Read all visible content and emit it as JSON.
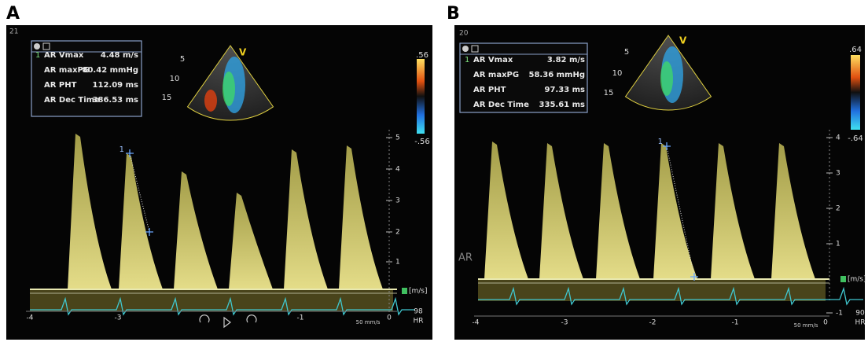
{
  "panels": [
    {
      "label": "A",
      "frame": "21",
      "measurements": [
        {
          "index": "1",
          "name": "AR Vmax",
          "value": "4.48 m/s"
        },
        {
          "name": "AR maxPG",
          "value": "80.42 mmHg"
        },
        {
          "name": "AR PHT",
          "value": "112.09 ms"
        },
        {
          "name": "AR Dec Time",
          "value": "386.53 ms"
        }
      ],
      "color_scale": [
        ".56",
        "-.56"
      ],
      "sector_depths": [
        "5",
        "10",
        "15"
      ],
      "sector_mark": "V",
      "velocity_scale": [
        "5",
        "4",
        "3",
        "2",
        "1"
      ],
      "velocity_unit": "[m/s]",
      "time_labels": [
        "-4",
        "-3",
        "-1",
        "0"
      ],
      "sweep_speed": "50 mm/s",
      "heart_rate": "98",
      "heart_rate_label": "HR",
      "caliper_label": "1"
    },
    {
      "label": "B",
      "frame": "20",
      "measurements": [
        {
          "index": "1",
          "name": "AR Vmax",
          "value": "3.82 m/s"
        },
        {
          "name": "AR maxPG",
          "value": "58.36 mmHg"
        },
        {
          "name": "AR PHT",
          "value": "97.33 ms"
        },
        {
          "name": "AR Dec Time",
          "value": "335.61 ms"
        }
      ],
      "color_scale": [
        ".64",
        "-.64"
      ],
      "sector_depths": [
        "5",
        "10",
        "15"
      ],
      "sector_mark": "V",
      "velocity_scale": [
        "4",
        "3",
        "2",
        "1",
        "-1"
      ],
      "velocity_unit": "[m/s]",
      "time_labels": [
        "-4",
        "-3",
        "-2",
        "-1",
        "0"
      ],
      "sweep_speed": "50 mm/s",
      "heart_rate": "90",
      "heart_rate_label": "HR",
      "caliper_label": "1"
    }
  ],
  "stray_label": "AR"
}
